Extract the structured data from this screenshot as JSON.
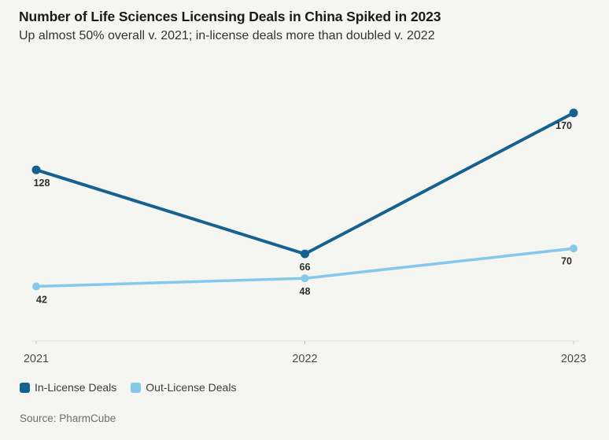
{
  "header": {
    "title": "Number of Life Sciences Licensing Deals in China Spiked in 2023",
    "subtitle": "Up almost 50% overall v. 2021; in-license deals more than doubled v. 2022"
  },
  "chart_data": {
    "type": "line",
    "categories": [
      "2021",
      "2022",
      "2023"
    ],
    "series": [
      {
        "name": "In-License Deals",
        "color": "#15618f",
        "values": [
          128,
          66,
          170
        ]
      },
      {
        "name": "Out-License Deals",
        "color": "#85c8e9",
        "values": [
          42,
          48,
          70
        ]
      }
    ],
    "title": "Number of Life Sciences Licensing Deals in China Spiked in 2023",
    "subtitle": "Up almost 50% overall v. 2021; in-license deals more than doubled v. 2022",
    "xlabel": "",
    "ylabel": "",
    "ylim": [
      0,
      195
    ],
    "grid": false,
    "legend_position": "bottom-left",
    "point_labels": true
  },
  "source": {
    "text": "Source: PharmCube"
  },
  "colors": {
    "background": "#f5f5f2",
    "axis_line": "#e4e4e1",
    "axis_tick": "#c9c9c6",
    "axis_label": "#4a4a4a",
    "value_label": "#2d2d2d"
  }
}
